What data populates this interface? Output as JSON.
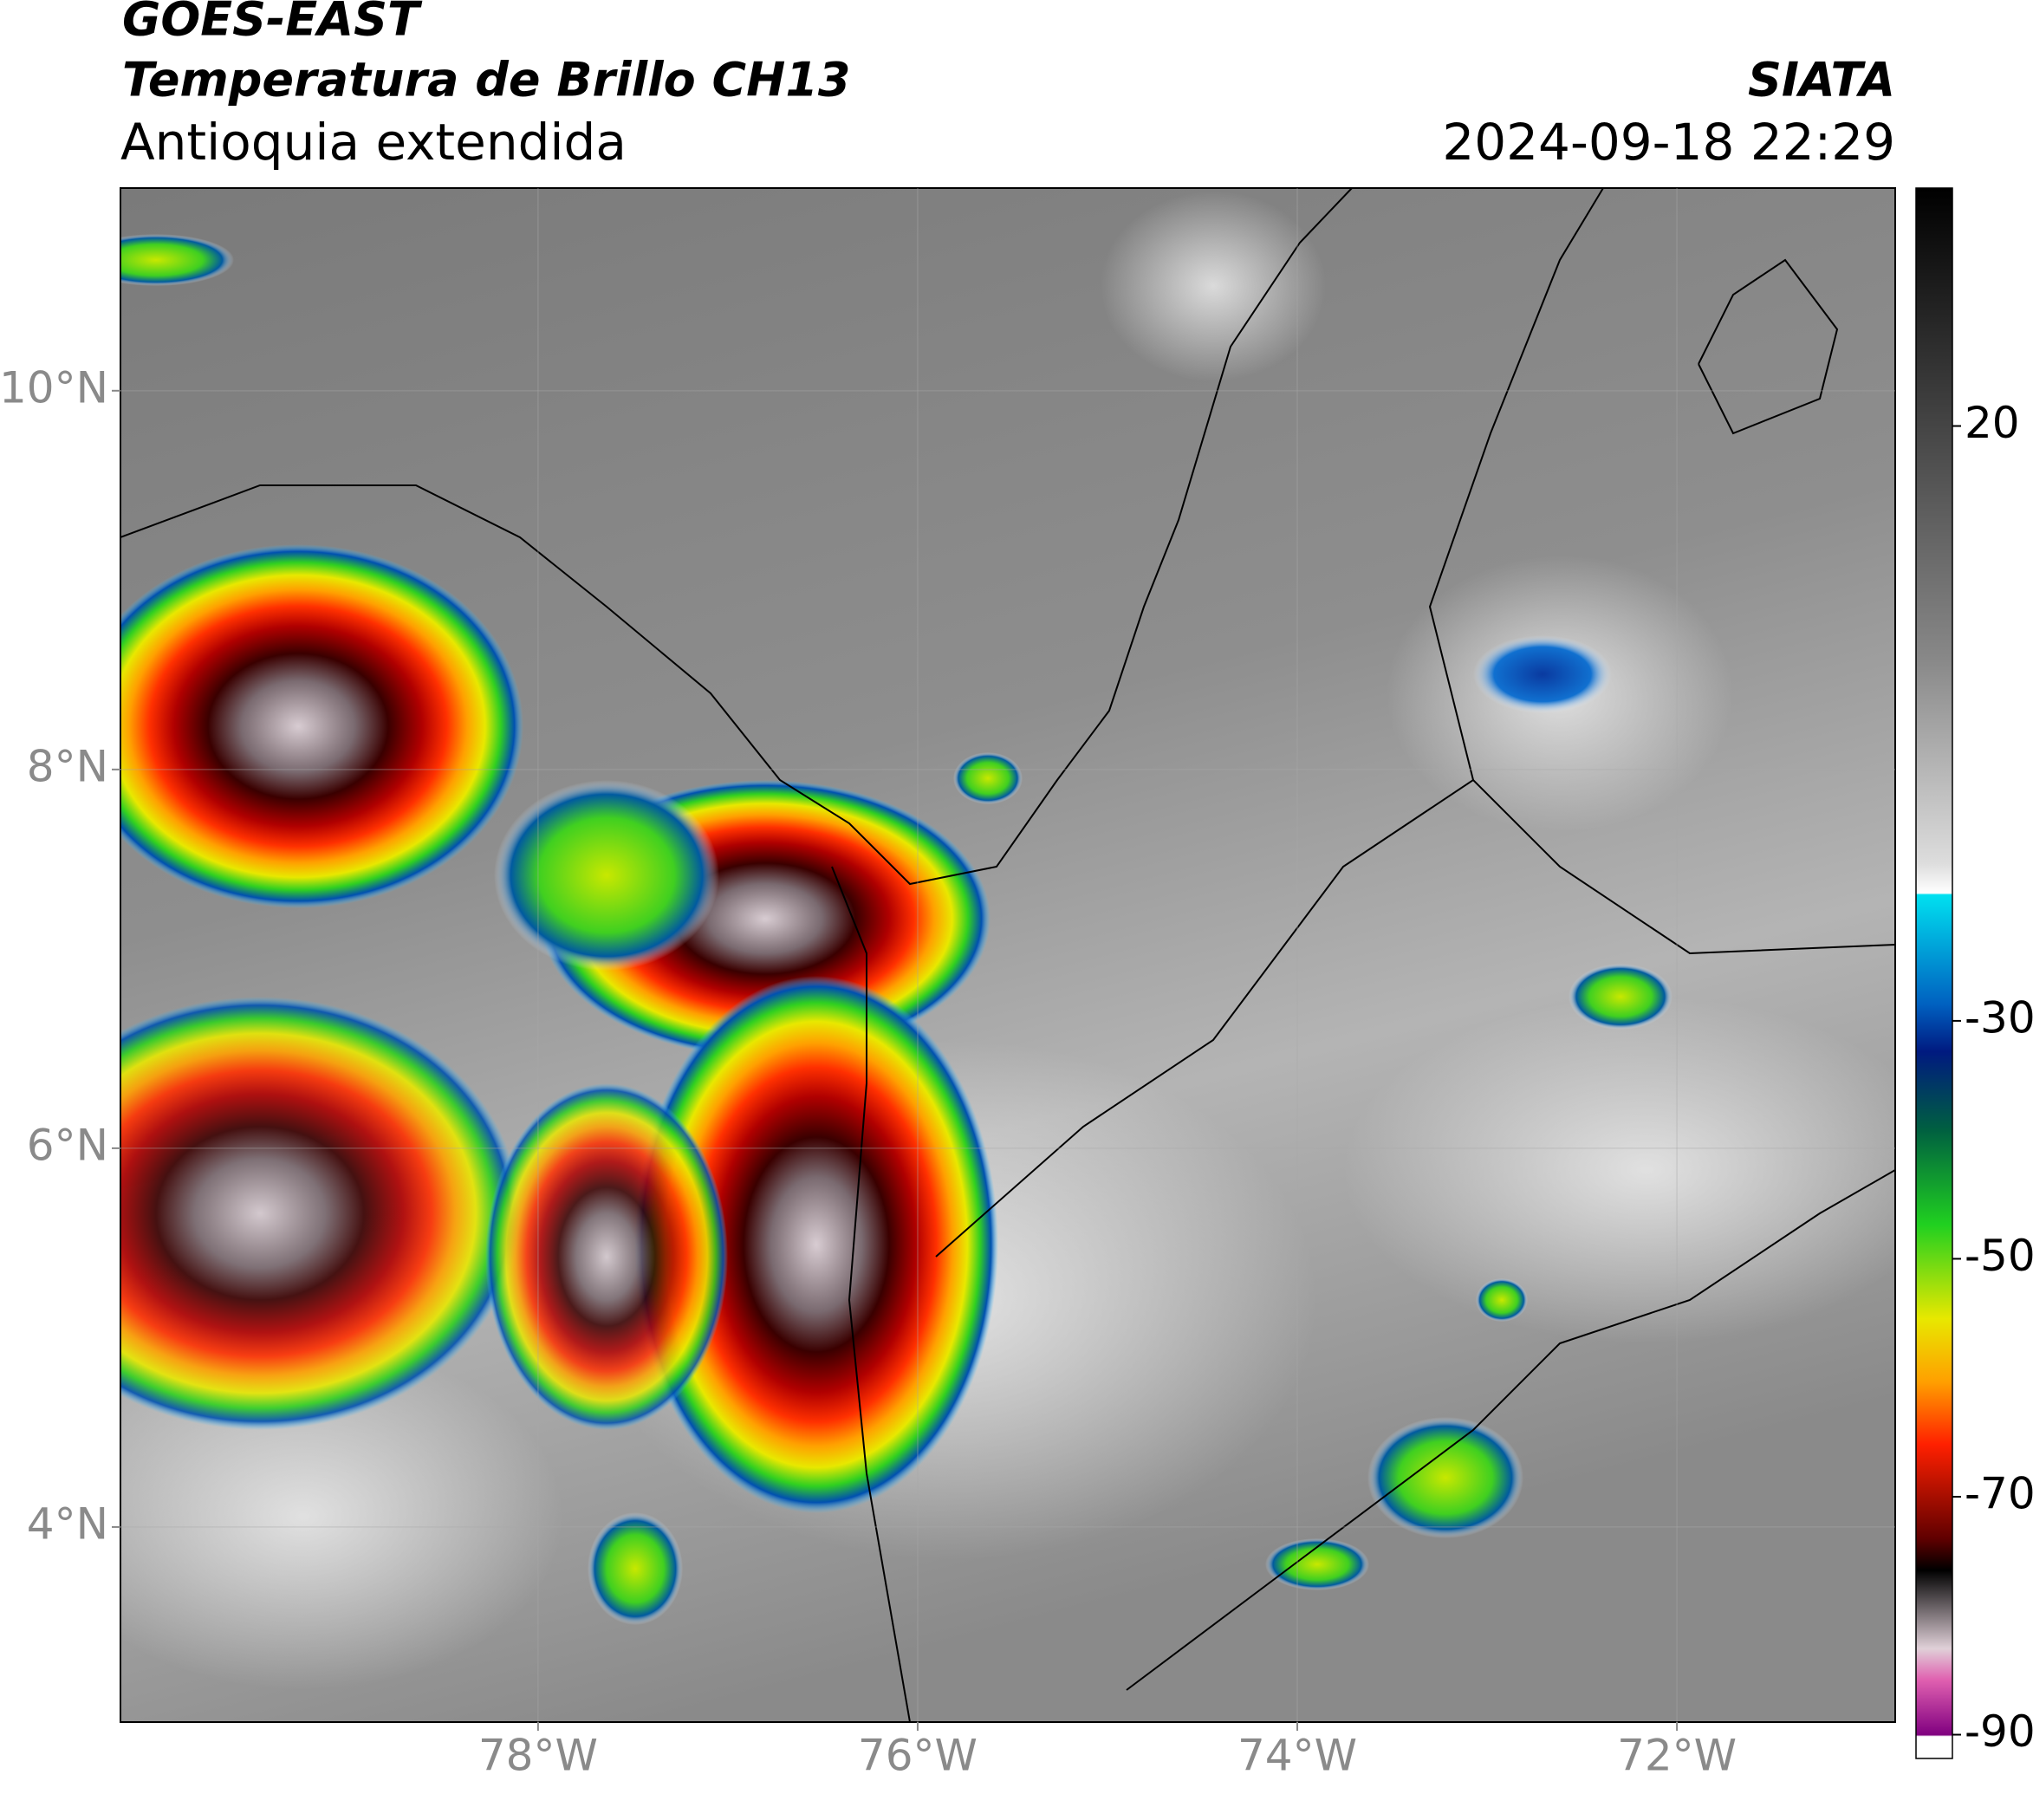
{
  "chart_data": {
    "type": "map",
    "title": "GOES-EAST",
    "subtitle": "Temperatura de Brillo CH13",
    "region": "Antioquia extendida",
    "source": "SIATA",
    "timestamp": "2024-09-18 22:29",
    "xlim": [
      -80.2,
      -70.85
    ],
    "ylim": [
      2.97,
      11.07
    ],
    "xticks": [
      {
        "value": -78,
        "label": "78°W"
      },
      {
        "value": -76,
        "label": "76°W"
      },
      {
        "value": -74,
        "label": "74°W"
      },
      {
        "value": -72,
        "label": "72°W"
      }
    ],
    "yticks": [
      {
        "value": 4,
        "label": "4°N"
      },
      {
        "value": 6,
        "label": "6°N"
      },
      {
        "value": 8,
        "label": "8°N"
      },
      {
        "value": 10,
        "label": "10°N"
      }
    ],
    "colorbar": {
      "lim": [
        -92,
        40
      ],
      "ticks": [
        -90,
        -70,
        -50,
        -30,
        20
      ]
    },
    "grid": true
  }
}
